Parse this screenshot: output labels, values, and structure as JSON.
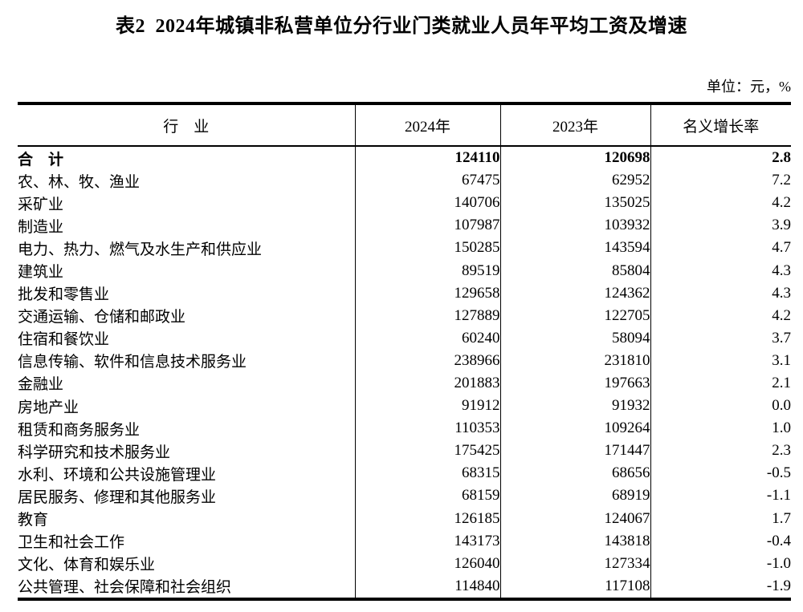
{
  "page": {
    "title": "表2 2024年城镇非私营单位分行业门类就业人员年平均工资及增速",
    "unit_note": "单位：元，%",
    "colors": {
      "text": "#000000",
      "background": "#ffffff",
      "border": "#000000"
    }
  },
  "table": {
    "columns": [
      "行　业",
      "2024年",
      "2023年",
      "名义增长率"
    ],
    "rows": [
      {
        "industry": "合　计",
        "y2024": "124110",
        "y2023": "120698",
        "growth": "2.8",
        "bold": true
      },
      {
        "industry": "农、林、牧、渔业",
        "y2024": "67475",
        "y2023": "62952",
        "growth": "7.2",
        "bold": false
      },
      {
        "industry": "采矿业",
        "y2024": "140706",
        "y2023": "135025",
        "growth": "4.2",
        "bold": false
      },
      {
        "industry": "制造业",
        "y2024": "107987",
        "y2023": "103932",
        "growth": "3.9",
        "bold": false
      },
      {
        "industry": "电力、热力、燃气及水生产和供应业",
        "y2024": "150285",
        "y2023": "143594",
        "growth": "4.7",
        "bold": false
      },
      {
        "industry": "建筑业",
        "y2024": "89519",
        "y2023": "85804",
        "growth": "4.3",
        "bold": false
      },
      {
        "industry": "批发和零售业",
        "y2024": "129658",
        "y2023": "124362",
        "growth": "4.3",
        "bold": false
      },
      {
        "industry": "交通运输、仓储和邮政业",
        "y2024": "127889",
        "y2023": "122705",
        "growth": "4.2",
        "bold": false
      },
      {
        "industry": "住宿和餐饮业",
        "y2024": "60240",
        "y2023": "58094",
        "growth": "3.7",
        "bold": false
      },
      {
        "industry": "信息传输、软件和信息技术服务业",
        "y2024": "238966",
        "y2023": "231810",
        "growth": "3.1",
        "bold": false
      },
      {
        "industry": "金融业",
        "y2024": "201883",
        "y2023": "197663",
        "growth": "2.1",
        "bold": false
      },
      {
        "industry": "房地产业",
        "y2024": "91912",
        "y2023": "91932",
        "growth": "0.0",
        "bold": false
      },
      {
        "industry": "租赁和商务服务业",
        "y2024": "110353",
        "y2023": "109264",
        "growth": "1.0",
        "bold": false
      },
      {
        "industry": "科学研究和技术服务业",
        "y2024": "175425",
        "y2023": "171447",
        "growth": "2.3",
        "bold": false
      },
      {
        "industry": "水利、环境和公共设施管理业",
        "y2024": "68315",
        "y2023": "68656",
        "growth": "-0.5",
        "bold": false
      },
      {
        "industry": "居民服务、修理和其他服务业",
        "y2024": "68159",
        "y2023": "68919",
        "growth": "-1.1",
        "bold": false
      },
      {
        "industry": "教育",
        "y2024": "126185",
        "y2023": "124067",
        "growth": "1.7",
        "bold": false
      },
      {
        "industry": "卫生和社会工作",
        "y2024": "143173",
        "y2023": "143818",
        "growth": "-0.4",
        "bold": false
      },
      {
        "industry": "文化、体育和娱乐业",
        "y2024": "126040",
        "y2023": "127334",
        "growth": "-1.0",
        "bold": false
      },
      {
        "industry": "公共管理、社会保障和社会组织",
        "y2024": "114840",
        "y2023": "117108",
        "growth": "-1.9",
        "bold": false
      }
    ]
  }
}
